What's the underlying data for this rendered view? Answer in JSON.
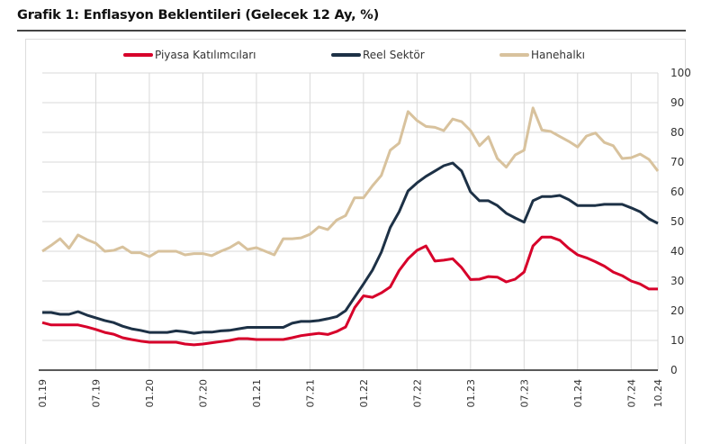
{
  "title": "Grafik 1: Enflasyon Beklentileri (Gelecek 12 Ay, %)",
  "chart_data": {
    "type": "line",
    "title": "Grafik 1: Enflasyon Beklentileri (Gelecek 12 Ay, %)",
    "xlabel": "",
    "ylabel": "",
    "x_start": "01.19",
    "x_end": "10.24",
    "x_frequency": "monthly",
    "x_tick_labels": [
      "01.19",
      "07.19",
      "01.20",
      "07.20",
      "01.21",
      "07.21",
      "01.22",
      "07.22",
      "01.23",
      "07.23",
      "01.24",
      "07.24",
      "10.24"
    ],
    "y_ticks": [
      0,
      10,
      20,
      30,
      40,
      50,
      60,
      70,
      80,
      90,
      100
    ],
    "ylim": [
      0,
      100
    ],
    "y_axis_side": "right",
    "grid": true,
    "legend_position": "top",
    "series": [
      {
        "name": "Piyasa Katılımcıları",
        "color": "#d7002a",
        "values": [
          16,
          15.2,
          15.2,
          15.2,
          15.2,
          14.5,
          13.7,
          12.7,
          12.1,
          10.9,
          10.3,
          9.8,
          9.4,
          9.4,
          9.4,
          9.4,
          8.8,
          8.5,
          8.8,
          9.2,
          9.6,
          10,
          10.6,
          10.6,
          10.3,
          10.3,
          10.3,
          10.3,
          10.9,
          11.6,
          12,
          12.4,
          12,
          13,
          14.5,
          21,
          25,
          24.5,
          26,
          28,
          33.5,
          37.5,
          40.3,
          41.8,
          36.7,
          37,
          37.5,
          34.5,
          30.5,
          30.6,
          31.5,
          31.3,
          29.7,
          30.6,
          33,
          41.8,
          44.8,
          44.8,
          43.7,
          41,
          38.8,
          37.8,
          36.5,
          35,
          33,
          31.8,
          30,
          29,
          27.3,
          27.3
        ]
      },
      {
        "name": "Reel Sektör",
        "color": "#1d3146",
        "values": [
          19.4,
          19.4,
          18.8,
          18.8,
          19.7,
          18.5,
          17.6,
          16.7,
          16,
          14.8,
          13.9,
          13.4,
          12.7,
          12.7,
          12.7,
          13.2,
          12.9,
          12.4,
          12.8,
          12.8,
          13.2,
          13.4,
          13.9,
          14.4,
          14.4,
          14.4,
          14.4,
          14.4,
          15.8,
          16.4,
          16.4,
          16.7,
          17.3,
          18,
          20,
          24.5,
          29,
          33.6,
          39.7,
          48,
          53.3,
          60.3,
          63,
          65.2,
          67,
          68.8,
          69.7,
          67,
          60,
          57,
          57,
          55.4,
          52.8,
          51.2,
          49.8,
          57,
          58.4,
          58.4,
          58.8,
          57.4,
          55.4,
          55.4,
          55.4,
          55.8,
          55.8,
          55.8,
          54.6,
          53.3,
          50.9,
          49.4
        ]
      },
      {
        "name": "Hanehalkı",
        "color": "#d8c29d",
        "values": [
          40,
          42,
          44.2,
          41,
          45.5,
          43.9,
          42.7,
          40,
          40.3,
          41.5,
          39.5,
          39.5,
          38.2,
          40,
          40,
          40,
          38.8,
          39.2,
          39.2,
          38.5,
          40,
          41.2,
          43,
          40.6,
          41.2,
          40,
          38.8,
          44.2,
          44.2,
          44.5,
          45.7,
          48.2,
          47.3,
          50.5,
          52,
          58,
          58,
          62,
          65.5,
          74,
          76.4,
          87,
          84,
          82,
          81.7,
          80.6,
          84.5,
          83.6,
          80.6,
          75.5,
          78.5,
          71.2,
          68.3,
          72.4,
          74,
          88.2,
          80.8,
          80.3,
          78.6,
          77,
          75.1,
          78.8,
          79.8,
          76.6,
          75.5,
          71.2,
          71.5,
          72.7,
          70.9,
          67
        ]
      }
    ]
  }
}
